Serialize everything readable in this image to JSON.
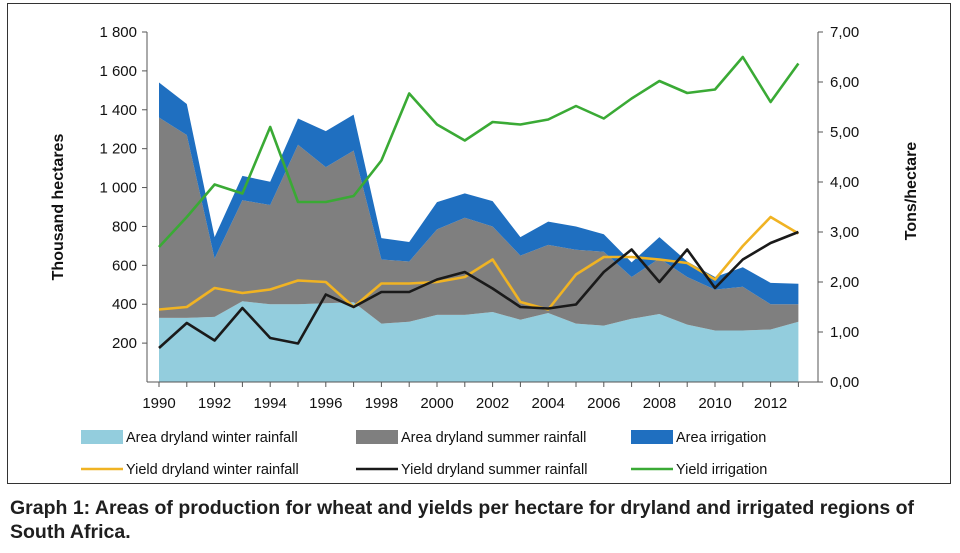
{
  "caption": "Graph 1: Areas of production for wheat and yields per hectare for dryland and irrigated regions of South Africa.",
  "chart_data": {
    "type": "area",
    "x": [
      1990,
      1991,
      1992,
      1993,
      1994,
      1995,
      1996,
      1997,
      1998,
      1999,
      2000,
      2001,
      2002,
      2003,
      2004,
      2005,
      2006,
      2007,
      2008,
      2009,
      2010,
      2011,
      2012,
      2013
    ],
    "x_tick_labels": [
      "1990",
      "1992",
      "1994",
      "1996",
      "1998",
      "2000",
      "2002",
      "2004",
      "2006",
      "2008",
      "2010",
      "2012"
    ],
    "y_left": {
      "label": "Thousand hectares",
      "ylim": [
        0,
        1800
      ],
      "tick_labels": [
        "200",
        "400",
        "600",
        "800",
        "1 000",
        "1 200",
        "1 400",
        "1 600",
        "1 800"
      ]
    },
    "y_right": {
      "label": "Tons/hectare",
      "ylim": [
        0,
        7
      ],
      "tick_labels": [
        "0,00",
        "1,00",
        "2,00",
        "3,00",
        "4,00",
        "5,00",
        "6,00",
        "7,00"
      ]
    },
    "area_series": [
      {
        "name": "Area dryland winter rainfall",
        "color": "#93cddd",
        "values": [
          330,
          330,
          335,
          415,
          400,
          400,
          405,
          410,
          300,
          310,
          345,
          345,
          360,
          320,
          355,
          300,
          290,
          325,
          350,
          295,
          265,
          265,
          270,
          310
        ]
      },
      {
        "name": "Area dryland summer rainfall",
        "color": "#7f7f7f",
        "values": [
          1030,
          940,
          300,
          520,
          510,
          820,
          700,
          780,
          330,
          310,
          440,
          500,
          440,
          330,
          350,
          380,
          380,
          215,
          285,
          245,
          210,
          225,
          130,
          90
        ]
      },
      {
        "name": "Area irrigation",
        "color": "#1f6fc0",
        "values": [
          180,
          160,
          110,
          125,
          120,
          135,
          185,
          185,
          110,
          100,
          140,
          125,
          130,
          95,
          120,
          120,
          90,
          75,
          110,
          80,
          65,
          100,
          110,
          105
        ]
      }
    ],
    "line_series": [
      {
        "name": "Yield dryland winter rainfall",
        "color": "#f0b323",
        "values": [
          1.45,
          1.5,
          1.88,
          1.78,
          1.85,
          2.03,
          2.0,
          1.5,
          1.97,
          1.97,
          2.0,
          2.1,
          2.45,
          1.6,
          1.45,
          2.15,
          2.5,
          2.5,
          2.45,
          2.38,
          2.05,
          2.72,
          3.3,
          2.97
        ]
      },
      {
        "name": "Yield dryland summer rainfall",
        "color": "#1a1a1a",
        "values": [
          0.68,
          1.18,
          0.83,
          1.48,
          0.88,
          0.77,
          1.75,
          1.5,
          1.8,
          1.8,
          2.05,
          2.2,
          1.87,
          1.5,
          1.47,
          1.55,
          2.2,
          2.65,
          2.0,
          2.65,
          1.88,
          2.45,
          2.78,
          3.0
        ]
      },
      {
        "name": "Yield irrigation",
        "color": "#3aaa35",
        "values": [
          2.7,
          3.3,
          3.95,
          3.77,
          5.1,
          3.6,
          3.6,
          3.72,
          4.43,
          5.77,
          5.15,
          4.83,
          5.2,
          5.15,
          5.25,
          5.52,
          5.27,
          5.67,
          6.02,
          5.78,
          5.85,
          6.5,
          5.6,
          6.37
        ]
      }
    ],
    "legend": "bottom",
    "grid": false
  }
}
